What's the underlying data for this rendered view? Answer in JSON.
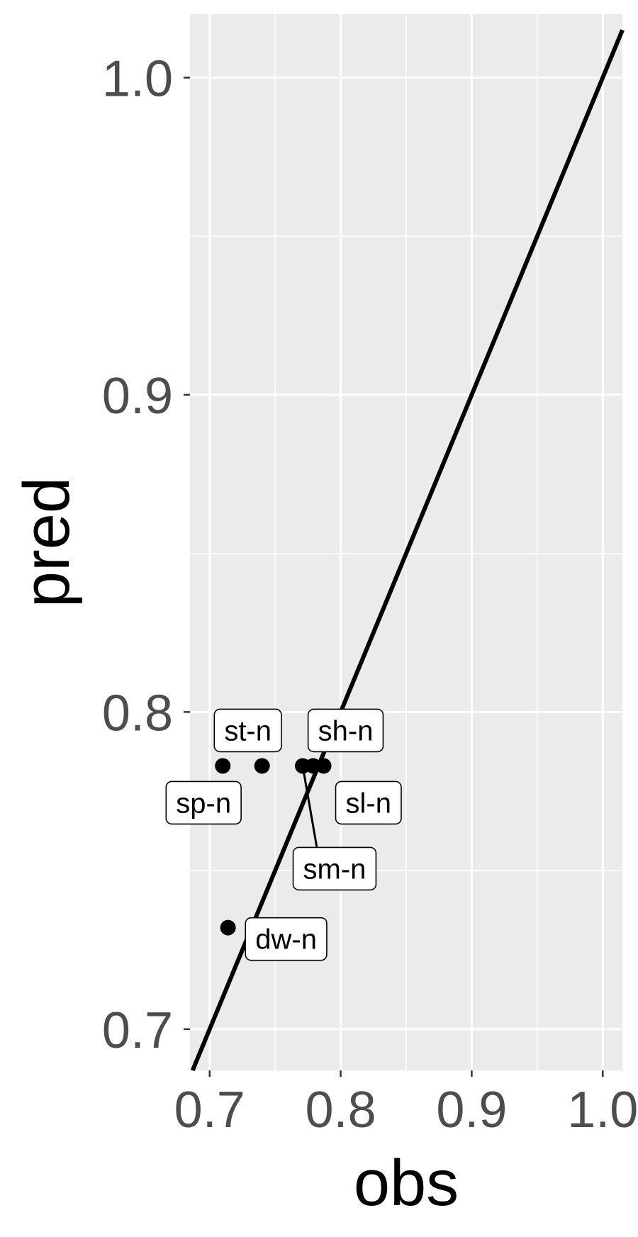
{
  "chart_data": {
    "type": "scatter",
    "title": "",
    "xlabel": "obs",
    "ylabel": "pred",
    "xlim": [
      0.685,
      1.015
    ],
    "ylim": [
      0.687,
      1.02
    ],
    "x_ticks": [
      0.7,
      0.8,
      0.9,
      1.0
    ],
    "y_ticks": [
      0.7,
      0.8,
      0.9,
      1.0
    ],
    "x_tick_labels": [
      "0.7",
      "0.8",
      "0.9",
      "1.0"
    ],
    "y_tick_labels": [
      "0.7",
      "0.8",
      "0.9",
      "1.0"
    ],
    "grid": true,
    "reference_line": {
      "type": "identity",
      "slope": 1,
      "intercept": 0,
      "color": "#000000"
    },
    "points": [
      {
        "label": "st-n",
        "x": 0.74,
        "y": 0.783
      },
      {
        "label": "sp-n",
        "x": 0.71,
        "y": 0.783
      },
      {
        "label": "sh-n",
        "x": 0.787,
        "y": 0.783
      },
      {
        "label": "sl-n",
        "x": 0.779,
        "y": 0.783
      },
      {
        "label": "sm-n",
        "x": 0.771,
        "y": 0.783
      },
      {
        "label": "dw-n",
        "x": 0.714,
        "y": 0.732
      }
    ],
    "colors": {
      "panel": "#ebebeb",
      "grid": "#ffffff",
      "points": "#000000",
      "line": "#000000",
      "tick_text": "#4d4d4d"
    }
  }
}
